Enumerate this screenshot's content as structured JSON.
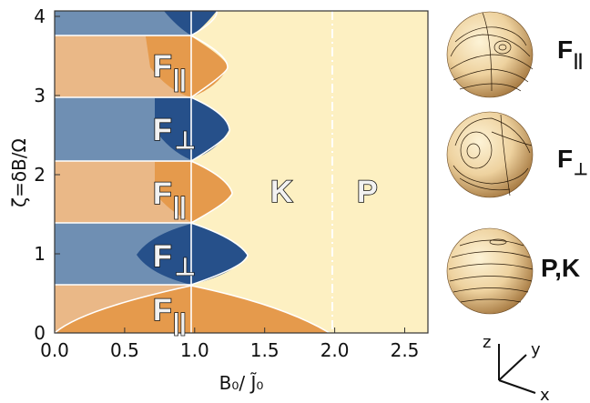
{
  "diagram": {
    "xlabel": "B₀/ J̃₀",
    "ylabel": "ζ=δB/Ω",
    "x_ticks": [
      "0.0",
      "0.5",
      "1.0",
      "1.5",
      "2.0",
      "2.5"
    ],
    "y_ticks": [
      "0",
      "1",
      "2",
      "3",
      "4"
    ],
    "regions": [
      {
        "main": "F",
        "sub": "||"
      },
      {
        "main": "F",
        "sub": "⊥"
      },
      {
        "main": "F",
        "sub": "||"
      },
      {
        "main": "F",
        "sub": "⊥"
      },
      {
        "main": "F",
        "sub": "||"
      },
      {
        "main": "K",
        "sub": ""
      },
      {
        "main": "P",
        "sub": ""
      }
    ],
    "sphere_captions": [
      {
        "main": "F",
        "sub": "||"
      },
      {
        "main": "F",
        "sub": "⊥"
      },
      {
        "main": "P,K",
        "sub": ""
      }
    ],
    "coord_axes": [
      "z",
      "y",
      "x"
    ],
    "colors": {
      "blue_light": "#6f8fb3",
      "blue_dark": "#26508a",
      "orange_light": "#eab887",
      "orange_dark": "#e59a4c",
      "cream": "#fdf0c2"
    }
  }
}
